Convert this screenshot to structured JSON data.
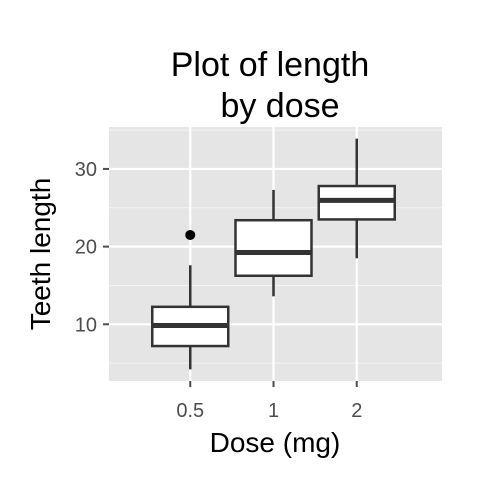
{
  "chart_data": {
    "type": "box",
    "title": [
      "Plot of length",
      "by dose"
    ],
    "xlabel": "Dose (mg)",
    "ylabel": "Teeth length",
    "categories": [
      "0.5",
      "1",
      "2"
    ],
    "boxes": [
      {
        "category": "0.5",
        "whisker_low": 4.2,
        "q1": 7.2,
        "median": 9.85,
        "q3": 12.25,
        "whisker_high": 17.6,
        "outliers": [
          21.5
        ]
      },
      {
        "category": "1",
        "whisker_low": 13.6,
        "q1": 16.25,
        "median": 19.25,
        "q3": 23.4,
        "whisker_high": 27.3,
        "outliers": []
      },
      {
        "category": "2",
        "whisker_low": 18.5,
        "q1": 23.5,
        "median": 25.95,
        "q3": 27.8,
        "whisker_high": 33.9,
        "outliers": []
      }
    ],
    "yticks": [
      "10",
      "20",
      "30"
    ],
    "ylim": [
      2.7,
      35.4
    ],
    "grid": true,
    "background": "#e5e5e5",
    "grid_color": "#ffffff",
    "box_fill": "#ffffff",
    "line_color": "#333333"
  }
}
